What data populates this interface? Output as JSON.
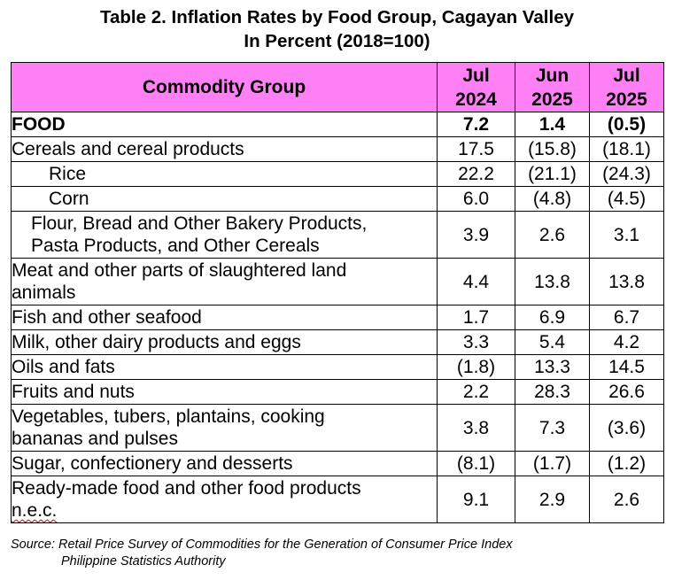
{
  "title": {
    "line1": "Table 2. Inflation Rates by Food Group, Cagayan Valley",
    "line2": "In Percent (2018=100)"
  },
  "table": {
    "header": {
      "group": "Commodity Group",
      "periods": [
        {
          "month": "Jul",
          "year": "2024"
        },
        {
          "month": "Jun",
          "year": "2025"
        },
        {
          "month": "Jul",
          "year": "2025"
        }
      ]
    },
    "rows": [
      {
        "label_lines": [
          "FOOD"
        ],
        "values": [
          "7.2",
          "1.4",
          "(0.5)"
        ]
      },
      {
        "label_lines": [
          "Cereals and cereal products"
        ],
        "values": [
          "17.5",
          "(15.8)",
          "(18.1)"
        ]
      },
      {
        "label_lines": [
          "Rice"
        ],
        "values": [
          "22.2",
          "(21.1)",
          "(24.3)"
        ]
      },
      {
        "label_lines": [
          "Corn"
        ],
        "values": [
          "6.0",
          "(4.8)",
          "(4.5)"
        ]
      },
      {
        "label_lines": [
          "Flour, Bread and Other Bakery Products,",
          "Pasta Products, and Other Cereals"
        ],
        "values": [
          "3.9",
          "2.6",
          "3.1"
        ]
      },
      {
        "label_lines": [
          "Meat and other parts of slaughtered land",
          "animals"
        ],
        "values": [
          "4.4",
          "13.8",
          "13.8"
        ]
      },
      {
        "label_lines": [
          "Fish and other seafood"
        ],
        "values": [
          "1.7",
          "6.9",
          "6.7"
        ]
      },
      {
        "label_lines": [
          "Milk, other dairy products and eggs"
        ],
        "values": [
          "3.3",
          "5.4",
          "4.2"
        ]
      },
      {
        "label_lines": [
          "Oils and fats"
        ],
        "values": [
          "(1.8)",
          "13.3",
          "14.5"
        ]
      },
      {
        "label_lines": [
          "Fruits and nuts"
        ],
        "values": [
          "2.2",
          "28.3",
          "26.6"
        ]
      },
      {
        "label_lines": [
          "Vegetables, tubers, plantains, cooking",
          "bananas and pulses"
        ],
        "values": [
          "3.8",
          "7.3",
          "(3.6)"
        ]
      },
      {
        "label_lines": [
          "Sugar, confectionery and desserts"
        ],
        "values": [
          "(8.1)",
          "(1.7)",
          "(1.2)"
        ]
      },
      {
        "label_lines": [
          "Ready-made food and other food products",
          "n.e.c."
        ],
        "values": [
          "9.1",
          "2.9",
          "2.6"
        ]
      }
    ]
  },
  "source": {
    "label": "Source:",
    "line1": "Retail Price Survey of Commodities for the Generation of Consumer Price Index",
    "line2": "Philippine Statistics Authority"
  },
  "colors": {
    "header_fill": "#ff7ff5",
    "border": "#000000",
    "spellcheck_underline": "#d00000"
  }
}
